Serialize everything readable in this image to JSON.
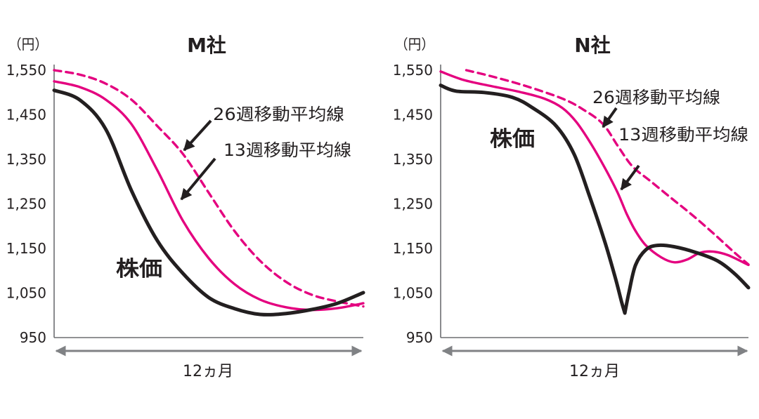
{
  "colors": {
    "axis": "#6d6e71",
    "span_arrow": "#808285",
    "text": "#231f20"
  },
  "chart_data": [
    {
      "type": "line",
      "title": "M社",
      "ylabel": "（円）",
      "xlabel": "12ヵ月",
      "xlim": [
        0,
        12
      ],
      "ylim": [
        950,
        1550
      ],
      "grid": false,
      "yticks": [
        950,
        1050,
        1150,
        1250,
        1350,
        1450,
        1550
      ],
      "ytick_labels": [
        "950",
        "1,050",
        "1,150",
        "1,250",
        "1,350",
        "1,450",
        "1,550"
      ],
      "series": [
        {
          "name": "株価",
          "color": "#231f20",
          "dashed": false,
          "points": [
            [
              0,
              1505
            ],
            [
              1,
              1483
            ],
            [
              2,
              1418
            ],
            [
              3,
              1280
            ],
            [
              4,
              1168
            ],
            [
              5,
              1094
            ],
            [
              6,
              1040
            ],
            [
              7,
              1015
            ],
            [
              8,
              1002
            ],
            [
              9,
              1004
            ],
            [
              10,
              1013
            ],
            [
              11,
              1027
            ],
            [
              12,
              1051
            ]
          ]
        },
        {
          "name": "13週移動平均線",
          "color": "#e4007f",
          "dashed": false,
          "points": [
            [
              0,
              1525
            ],
            [
              1,
              1512
            ],
            [
              2,
              1484
            ],
            [
              3,
              1429
            ],
            [
              4,
              1326
            ],
            [
              5,
              1212
            ],
            [
              6,
              1128
            ],
            [
              7,
              1070
            ],
            [
              8,
              1035
            ],
            [
              9,
              1018
            ],
            [
              10,
              1012
            ],
            [
              11,
              1016
            ],
            [
              12,
              1027
            ]
          ]
        },
        {
          "name": "26週移動平均線",
          "color": "#e4007f",
          "dashed": true,
          "points": [
            [
              0,
              1550
            ],
            [
              1,
              1540
            ],
            [
              2,
              1520
            ],
            [
              3,
              1484
            ],
            [
              4,
              1425
            ],
            [
              5,
              1362
            ],
            [
              6,
              1275
            ],
            [
              7,
              1189
            ],
            [
              8,
              1122
            ],
            [
              9,
              1075
            ],
            [
              10,
              1046
            ],
            [
              11,
              1031
            ],
            [
              12,
              1020
            ]
          ]
        }
      ]
    },
    {
      "type": "line",
      "title": "N社",
      "ylabel": "（円）",
      "xlabel": "12ヵ月",
      "xlim": [
        0,
        12
      ],
      "ylim": [
        950,
        1550
      ],
      "grid": false,
      "yticks": [
        950,
        1050,
        1150,
        1250,
        1350,
        1450,
        1550
      ],
      "ytick_labels": [
        "950",
        "1,050",
        "1,150",
        "1,250",
        "1,350",
        "1,450",
        "1,550"
      ],
      "series": [
        {
          "name": "株価",
          "color": "#231f20",
          "dashed": false,
          "points": [
            [
              0,
              1516
            ],
            [
              0.6,
              1503
            ],
            [
              1.7,
              1500
            ],
            [
              2.8,
              1489
            ],
            [
              3.6,
              1465
            ],
            [
              4.5,
              1425
            ],
            [
              5.2,
              1362
            ],
            [
              5.8,
              1268
            ],
            [
              6.4,
              1165
            ],
            [
              6.8,
              1086
            ],
            [
              7.05,
              1031
            ],
            [
              7.18,
              1005
            ],
            [
              7.35,
              1054
            ],
            [
              7.6,
              1113
            ],
            [
              8,
              1147
            ],
            [
              8.45,
              1157
            ],
            [
              9.1,
              1154
            ],
            [
              9.95,
              1141
            ],
            [
              10.8,
              1122
            ],
            [
              11.45,
              1094
            ],
            [
              12,
              1062
            ]
          ]
        },
        {
          "name": "13週移動平均線",
          "color": "#e4007f",
          "dashed": false,
          "points": [
            [
              0,
              1547
            ],
            [
              0.9,
              1528
            ],
            [
              2,
              1514
            ],
            [
              3.1,
              1501
            ],
            [
              4.05,
              1486
            ],
            [
              4.75,
              1465
            ],
            [
              5.3,
              1433
            ],
            [
              5.85,
              1386
            ],
            [
              6.4,
              1331
            ],
            [
              6.9,
              1275
            ],
            [
              7.25,
              1228
            ],
            [
              7.6,
              1189
            ],
            [
              8,
              1157
            ],
            [
              8.6,
              1130
            ],
            [
              9.1,
              1119
            ],
            [
              9.6,
              1125
            ],
            [
              10.1,
              1140
            ],
            [
              10.6,
              1143
            ],
            [
              11.2,
              1135
            ],
            [
              12,
              1113
            ]
          ]
        },
        {
          "name": "26週移動平均線",
          "color": "#e4007f",
          "dashed": true,
          "points": [
            [
              1,
              1550
            ],
            [
              2,
              1536
            ],
            [
              3.35,
              1514
            ],
            [
              4.75,
              1486
            ],
            [
              5.55,
              1462
            ],
            [
              6.33,
              1429
            ],
            [
              6.93,
              1378
            ],
            [
              7.48,
              1334
            ],
            [
              8.16,
              1302
            ],
            [
              8.99,
              1263
            ],
            [
              9.81,
              1225
            ],
            [
              10.63,
              1184
            ],
            [
              11.45,
              1141
            ],
            [
              12,
              1114
            ]
          ]
        }
      ]
    }
  ]
}
